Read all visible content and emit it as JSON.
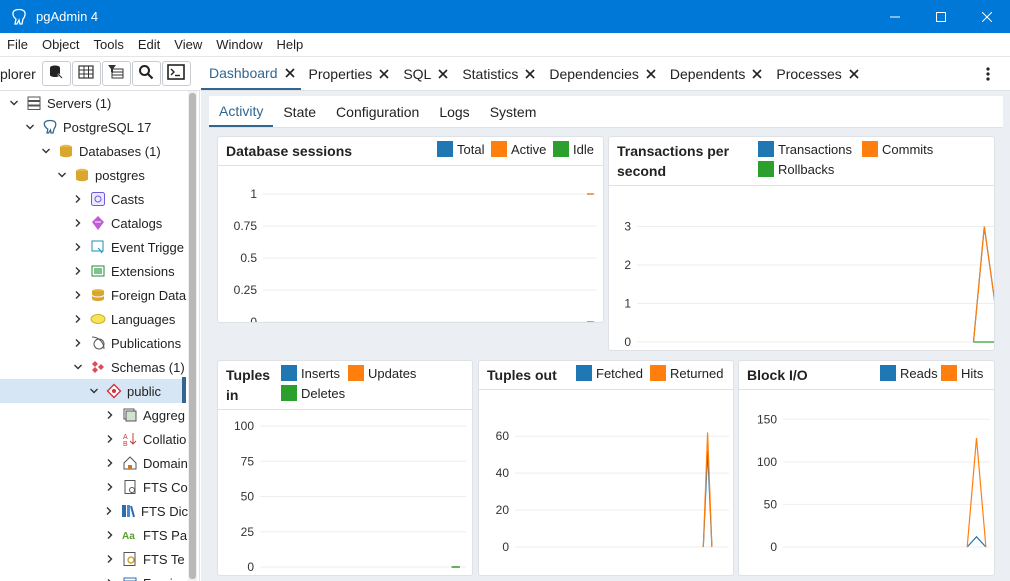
{
  "window": {
    "title": "pgAdmin 4"
  },
  "menu": [
    "File",
    "Object",
    "Tools",
    "Edit",
    "View",
    "Window",
    "Help"
  ],
  "explorer": {
    "title": "plorer",
    "toolbar_icons": [
      "database-query-icon",
      "table-view-icon",
      "filter-rows-icon",
      "search-icon",
      "terminal-icon"
    ]
  },
  "tree": [
    {
      "label": "Servers (1)",
      "depth": 0,
      "expanded": true,
      "icon": "servers-icon"
    },
    {
      "label": "PostgreSQL 17",
      "depth": 1,
      "expanded": true,
      "icon": "elephant-icon"
    },
    {
      "label": "Databases (1)",
      "depth": 2,
      "expanded": true,
      "icon": "databases-icon"
    },
    {
      "label": "postgres",
      "depth": 3,
      "expanded": true,
      "icon": "database-icon"
    },
    {
      "label": "Casts",
      "depth": 4,
      "expanded": false,
      "icon": "casts-icon"
    },
    {
      "label": "Catalogs",
      "depth": 4,
      "expanded": false,
      "icon": "catalogs-icon"
    },
    {
      "label": "Event Trigge",
      "depth": 4,
      "expanded": false,
      "icon": "event-trigger-icon"
    },
    {
      "label": "Extensions",
      "depth": 4,
      "expanded": false,
      "icon": "extensions-icon"
    },
    {
      "label": "Foreign Data",
      "depth": 4,
      "expanded": false,
      "icon": "foreign-data-icon"
    },
    {
      "label": "Languages",
      "depth": 4,
      "expanded": false,
      "icon": "languages-icon"
    },
    {
      "label": "Publications",
      "depth": 4,
      "expanded": false,
      "icon": "publications-icon"
    },
    {
      "label": "Schemas (1)",
      "depth": 4,
      "expanded": true,
      "icon": "schemas-icon"
    },
    {
      "label": "public",
      "depth": 5,
      "expanded": true,
      "icon": "schema-icon",
      "selected": true
    },
    {
      "label": "Aggreg",
      "depth": 6,
      "expanded": false,
      "icon": "aggregates-icon"
    },
    {
      "label": "Collatio",
      "depth": 6,
      "expanded": false,
      "icon": "collations-icon"
    },
    {
      "label": "Domain",
      "depth": 6,
      "expanded": false,
      "icon": "domains-icon"
    },
    {
      "label": "FTS Co",
      "depth": 6,
      "expanded": false,
      "icon": "fts-config-icon"
    },
    {
      "label": "FTS Dic",
      "depth": 6,
      "expanded": false,
      "icon": "fts-dict-icon"
    },
    {
      "label": "FTS Pa",
      "depth": 6,
      "expanded": false,
      "icon": "fts-parser-icon"
    },
    {
      "label": "FTS Te",
      "depth": 6,
      "expanded": false,
      "icon": "fts-template-icon"
    },
    {
      "label": "Foreign",
      "depth": 6,
      "expanded": false,
      "icon": "foreign-table-icon"
    }
  ],
  "main_tabs": [
    {
      "label": "Dashboard",
      "active": true
    },
    {
      "label": "Properties",
      "active": false
    },
    {
      "label": "SQL",
      "active": false
    },
    {
      "label": "Statistics",
      "active": false
    },
    {
      "label": "Dependencies",
      "active": false
    },
    {
      "label": "Dependents",
      "active": false
    },
    {
      "label": "Processes",
      "active": false
    }
  ],
  "sub_tabs": [
    {
      "label": "Activity",
      "active": true
    },
    {
      "label": "State",
      "active": false
    },
    {
      "label": "Configuration",
      "active": false
    },
    {
      "label": "Logs",
      "active": false
    },
    {
      "label": "System",
      "active": false
    }
  ],
  "colors": {
    "blue": "#1f77b4",
    "orange": "#ff7f0e",
    "green": "#2ca02c",
    "accent": "#326690"
  },
  "chart_data": [
    {
      "id": "sessions",
      "type": "line",
      "title": "Database sessions",
      "legend": [
        "Total",
        "Active",
        "Idle"
      ],
      "ylim": [
        0,
        1
      ],
      "yticks": [
        "1",
        "0.75",
        "0.5",
        "0.25",
        "0"
      ],
      "series": [
        {
          "name": "Total",
          "color": "#1f77b4",
          "values": [
            1,
            1
          ]
        },
        {
          "name": "Active",
          "color": "#ff7f0e",
          "values": [
            1,
            1
          ]
        },
        {
          "name": "Idle",
          "color": "#2ca02c",
          "values": [
            0,
            0
          ]
        }
      ]
    },
    {
      "id": "transactions",
      "type": "line",
      "title": "Transactions per second",
      "legend": [
        "Transactions",
        "Commits",
        "Rollbacks"
      ],
      "ylim": [
        0,
        3.3
      ],
      "yticks": [
        "3",
        "2",
        "1",
        "0"
      ],
      "series": [
        {
          "name": "Transactions",
          "color": "#1f77b4",
          "values": [
            0,
            3,
            1
          ]
        },
        {
          "name": "Commits",
          "color": "#ff7f0e",
          "values": [
            0,
            3,
            1
          ]
        },
        {
          "name": "Rollbacks",
          "color": "#2ca02c",
          "values": [
            0,
            0,
            0
          ]
        }
      ]
    },
    {
      "id": "tuples_in",
      "type": "line",
      "title": "Tuples in",
      "legend": [
        "Inserts",
        "Updates",
        "Deletes"
      ],
      "ylim": [
        0,
        100
      ],
      "yticks": [
        "100",
        "75",
        "50",
        "25",
        "0"
      ],
      "series": [
        {
          "name": "Inserts",
          "color": "#1f77b4",
          "values": [
            0,
            0
          ]
        },
        {
          "name": "Updates",
          "color": "#ff7f0e",
          "values": [
            0,
            0
          ]
        },
        {
          "name": "Deletes",
          "color": "#2ca02c",
          "values": [
            0,
            0
          ]
        }
      ]
    },
    {
      "id": "tuples_out",
      "type": "line",
      "title": "Tuples out",
      "legend": [
        "Fetched",
        "Returned"
      ],
      "ylim": [
        0,
        65
      ],
      "yticks": [
        "60",
        "40",
        "20",
        "0"
      ],
      "series": [
        {
          "name": "Fetched",
          "color": "#1f77b4",
          "values": [
            0,
            52,
            0
          ]
        },
        {
          "name": "Returned",
          "color": "#ff7f0e",
          "values": [
            0,
            62,
            0
          ]
        }
      ]
    },
    {
      "id": "block_io",
      "type": "line",
      "title": "Block I/O",
      "legend": [
        "Reads",
        "Hits"
      ],
      "ylim": [
        0,
        155
      ],
      "yticks": [
        "150",
        "100",
        "50",
        "0"
      ],
      "series": [
        {
          "name": "Reads",
          "color": "#1f77b4",
          "values": [
            0,
            12,
            0
          ]
        },
        {
          "name": "Hits",
          "color": "#ff7f0e",
          "values": [
            0,
            128,
            0
          ]
        }
      ]
    }
  ]
}
